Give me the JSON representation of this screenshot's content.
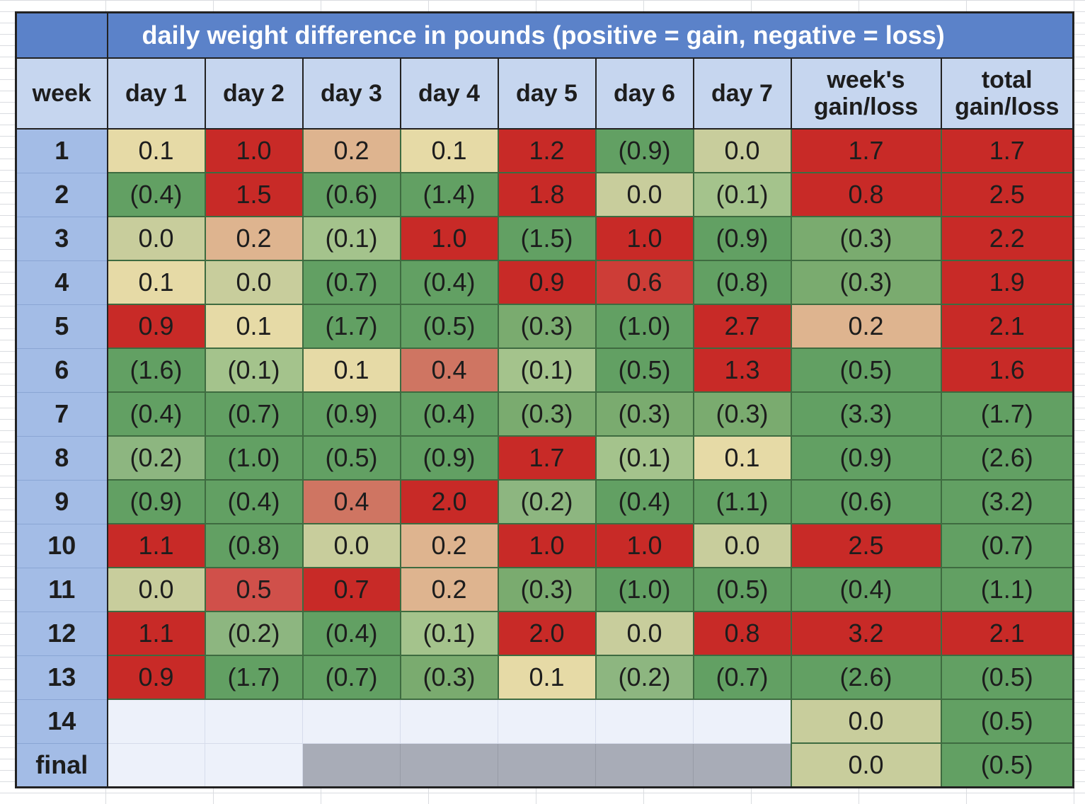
{
  "title": "daily weight difference in pounds (positive = gain, negative = loss)",
  "headers": [
    "week",
    "day 1",
    "day 2",
    "day 3",
    "day 4",
    "day 5",
    "day 6",
    "day 7",
    "week's gain/loss",
    "total gain/loss"
  ],
  "palette": {
    "red": "#c82a27",
    "red2": "#cd3d37",
    "red3": "#d0504a",
    "salmon": "#cf7562",
    "peach": "#deb48f",
    "cream": "#e6daa6",
    "olive": "#c8cd9c",
    "ltgreen": "#a4c38c",
    "mdgreen": "#8db680",
    "green": "#7aab6f",
    "dkgreen": "#62a063",
    "empty": "#edf1fa",
    "gray": "#a8acb7"
  },
  "rows": [
    {
      "week": "1",
      "cells": [
        {
          "v": "0.1",
          "c": "cream"
        },
        {
          "v": "1.0",
          "c": "red"
        },
        {
          "v": "0.2",
          "c": "peach"
        },
        {
          "v": "0.1",
          "c": "cream"
        },
        {
          "v": "1.2",
          "c": "red"
        },
        {
          "v": "(0.9)",
          "c": "dkgreen"
        },
        {
          "v": "0.0",
          "c": "olive"
        },
        {
          "v": "1.7",
          "c": "red"
        },
        {
          "v": "1.7",
          "c": "red"
        }
      ]
    },
    {
      "week": "2",
      "cells": [
        {
          "v": "(0.4)",
          "c": "dkgreen"
        },
        {
          "v": "1.5",
          "c": "red"
        },
        {
          "v": "(0.6)",
          "c": "dkgreen"
        },
        {
          "v": "(1.4)",
          "c": "dkgreen"
        },
        {
          "v": "1.8",
          "c": "red"
        },
        {
          "v": "0.0",
          "c": "olive"
        },
        {
          "v": "(0.1)",
          "c": "ltgreen"
        },
        {
          "v": "0.8",
          "c": "red"
        },
        {
          "v": "2.5",
          "c": "red"
        }
      ]
    },
    {
      "week": "3",
      "cells": [
        {
          "v": "0.0",
          "c": "olive"
        },
        {
          "v": "0.2",
          "c": "peach"
        },
        {
          "v": "(0.1)",
          "c": "ltgreen"
        },
        {
          "v": "1.0",
          "c": "red"
        },
        {
          "v": "(1.5)",
          "c": "dkgreen"
        },
        {
          "v": "1.0",
          "c": "red"
        },
        {
          "v": "(0.9)",
          "c": "dkgreen"
        },
        {
          "v": "(0.3)",
          "c": "green"
        },
        {
          "v": "2.2",
          "c": "red"
        }
      ]
    },
    {
      "week": "4",
      "cells": [
        {
          "v": "0.1",
          "c": "cream"
        },
        {
          "v": "0.0",
          "c": "olive"
        },
        {
          "v": "(0.7)",
          "c": "dkgreen"
        },
        {
          "v": "(0.4)",
          "c": "dkgreen"
        },
        {
          "v": "0.9",
          "c": "red"
        },
        {
          "v": "0.6",
          "c": "red2"
        },
        {
          "v": "(0.8)",
          "c": "dkgreen"
        },
        {
          "v": "(0.3)",
          "c": "green"
        },
        {
          "v": "1.9",
          "c": "red"
        }
      ]
    },
    {
      "week": "5",
      "cells": [
        {
          "v": "0.9",
          "c": "red"
        },
        {
          "v": "0.1",
          "c": "cream"
        },
        {
          "v": "(1.7)",
          "c": "dkgreen"
        },
        {
          "v": "(0.5)",
          "c": "dkgreen"
        },
        {
          "v": "(0.3)",
          "c": "green"
        },
        {
          "v": "(1.0)",
          "c": "dkgreen"
        },
        {
          "v": "2.7",
          "c": "red"
        },
        {
          "v": "0.2",
          "c": "peach"
        },
        {
          "v": "2.1",
          "c": "red"
        }
      ]
    },
    {
      "week": "6",
      "cells": [
        {
          "v": "(1.6)",
          "c": "dkgreen"
        },
        {
          "v": "(0.1)",
          "c": "ltgreen"
        },
        {
          "v": "0.1",
          "c": "cream"
        },
        {
          "v": "0.4",
          "c": "salmon"
        },
        {
          "v": "(0.1)",
          "c": "ltgreen"
        },
        {
          "v": "(0.5)",
          "c": "dkgreen"
        },
        {
          "v": "1.3",
          "c": "red"
        },
        {
          "v": "(0.5)",
          "c": "dkgreen"
        },
        {
          "v": "1.6",
          "c": "red"
        }
      ]
    },
    {
      "week": "7",
      "cells": [
        {
          "v": "(0.4)",
          "c": "dkgreen"
        },
        {
          "v": "(0.7)",
          "c": "dkgreen"
        },
        {
          "v": "(0.9)",
          "c": "dkgreen"
        },
        {
          "v": "(0.4)",
          "c": "dkgreen"
        },
        {
          "v": "(0.3)",
          "c": "green"
        },
        {
          "v": "(0.3)",
          "c": "green"
        },
        {
          "v": "(0.3)",
          "c": "green"
        },
        {
          "v": "(3.3)",
          "c": "dkgreen"
        },
        {
          "v": "(1.7)",
          "c": "dkgreen"
        }
      ]
    },
    {
      "week": "8",
      "cells": [
        {
          "v": "(0.2)",
          "c": "mdgreen"
        },
        {
          "v": "(1.0)",
          "c": "dkgreen"
        },
        {
          "v": "(0.5)",
          "c": "dkgreen"
        },
        {
          "v": "(0.9)",
          "c": "dkgreen"
        },
        {
          "v": "1.7",
          "c": "red"
        },
        {
          "v": "(0.1)",
          "c": "ltgreen"
        },
        {
          "v": "0.1",
          "c": "cream"
        },
        {
          "v": "(0.9)",
          "c": "dkgreen"
        },
        {
          "v": "(2.6)",
          "c": "dkgreen"
        }
      ]
    },
    {
      "week": "9",
      "cells": [
        {
          "v": "(0.9)",
          "c": "dkgreen"
        },
        {
          "v": "(0.4)",
          "c": "dkgreen"
        },
        {
          "v": "0.4",
          "c": "salmon"
        },
        {
          "v": "2.0",
          "c": "red"
        },
        {
          "v": "(0.2)",
          "c": "mdgreen"
        },
        {
          "v": "(0.4)",
          "c": "dkgreen"
        },
        {
          "v": "(1.1)",
          "c": "dkgreen"
        },
        {
          "v": "(0.6)",
          "c": "dkgreen"
        },
        {
          "v": "(3.2)",
          "c": "dkgreen"
        }
      ]
    },
    {
      "week": "10",
      "cells": [
        {
          "v": "1.1",
          "c": "red"
        },
        {
          "v": "(0.8)",
          "c": "dkgreen"
        },
        {
          "v": "0.0",
          "c": "olive"
        },
        {
          "v": "0.2",
          "c": "peach"
        },
        {
          "v": "1.0",
          "c": "red"
        },
        {
          "v": "1.0",
          "c": "red"
        },
        {
          "v": "0.0",
          "c": "olive"
        },
        {
          "v": "2.5",
          "c": "red"
        },
        {
          "v": "(0.7)",
          "c": "dkgreen"
        }
      ]
    },
    {
      "week": "11",
      "cells": [
        {
          "v": "0.0",
          "c": "olive"
        },
        {
          "v": "0.5",
          "c": "red3"
        },
        {
          "v": "0.7",
          "c": "red"
        },
        {
          "v": "0.2",
          "c": "peach"
        },
        {
          "v": "(0.3)",
          "c": "green"
        },
        {
          "v": "(1.0)",
          "c": "dkgreen"
        },
        {
          "v": "(0.5)",
          "c": "dkgreen"
        },
        {
          "v": "(0.4)",
          "c": "dkgreen"
        },
        {
          "v": "(1.1)",
          "c": "dkgreen"
        }
      ]
    },
    {
      "week": "12",
      "cells": [
        {
          "v": "1.1",
          "c": "red"
        },
        {
          "v": "(0.2)",
          "c": "mdgreen"
        },
        {
          "v": "(0.4)",
          "c": "dkgreen"
        },
        {
          "v": "(0.1)",
          "c": "ltgreen"
        },
        {
          "v": "2.0",
          "c": "red"
        },
        {
          "v": "0.0",
          "c": "olive"
        },
        {
          "v": "0.8",
          "c": "red"
        },
        {
          "v": "3.2",
          "c": "red"
        },
        {
          "v": "2.1",
          "c": "red"
        }
      ]
    },
    {
      "week": "13",
      "cells": [
        {
          "v": "0.9",
          "c": "red"
        },
        {
          "v": "(1.7)",
          "c": "dkgreen"
        },
        {
          "v": "(0.7)",
          "c": "dkgreen"
        },
        {
          "v": "(0.3)",
          "c": "green"
        },
        {
          "v": "0.1",
          "c": "cream"
        },
        {
          "v": "(0.2)",
          "c": "mdgreen"
        },
        {
          "v": "(0.7)",
          "c": "dkgreen"
        },
        {
          "v": "(2.6)",
          "c": "dkgreen"
        },
        {
          "v": "(0.5)",
          "c": "dkgreen"
        }
      ]
    },
    {
      "week": "14",
      "cells": [
        {
          "v": "",
          "c": "empty"
        },
        {
          "v": "",
          "c": "empty"
        },
        {
          "v": "",
          "c": "empty"
        },
        {
          "v": "",
          "c": "empty"
        },
        {
          "v": "",
          "c": "empty"
        },
        {
          "v": "",
          "c": "empty"
        },
        {
          "v": "",
          "c": "empty"
        },
        {
          "v": "0.0",
          "c": "olive"
        },
        {
          "v": "(0.5)",
          "c": "dkgreen"
        }
      ]
    },
    {
      "week": "final",
      "cells": [
        {
          "v": "",
          "c": "empty"
        },
        {
          "v": "",
          "c": "empty"
        },
        {
          "v": "",
          "c": "gray"
        },
        {
          "v": "",
          "c": "gray"
        },
        {
          "v": "",
          "c": "gray"
        },
        {
          "v": "",
          "c": "gray"
        },
        {
          "v": "",
          "c": "gray"
        },
        {
          "v": "0.0",
          "c": "olive"
        },
        {
          "v": "(0.5)",
          "c": "dkgreen"
        }
      ]
    }
  ]
}
